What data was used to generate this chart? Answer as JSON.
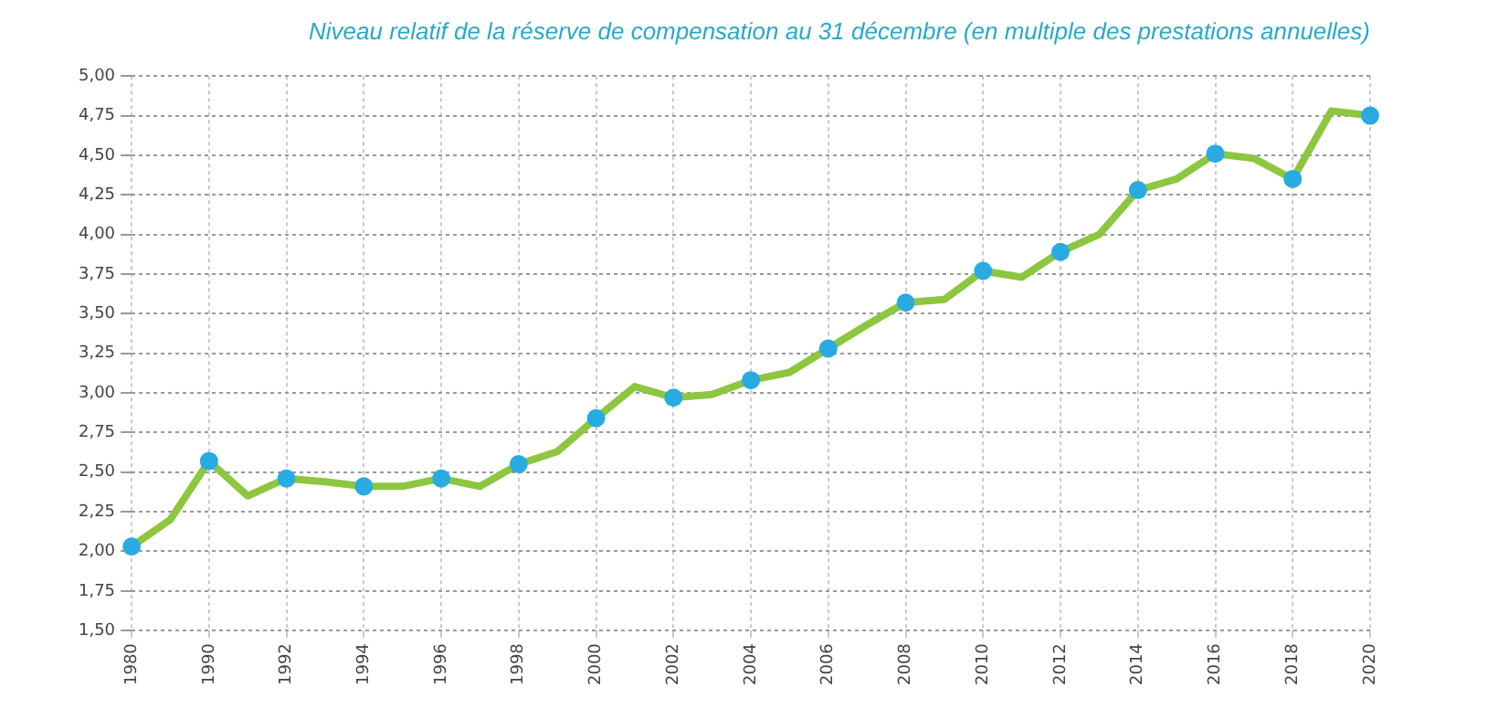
{
  "chart_data": {
    "type": "line",
    "title": "Niveau relatif de la réserve de compensation au 31 décembre (en multiple des prestations annuelles)",
    "categories": [
      "1980",
      null,
      "1990",
      null,
      "1992",
      null,
      "1994",
      null,
      "1996",
      null,
      "1998",
      null,
      "2000",
      null,
      "2002",
      null,
      "2004",
      null,
      "2006",
      null,
      "2008",
      null,
      "2010",
      null,
      "2012",
      null,
      "2014",
      null,
      "2016",
      null,
      "2018",
      null,
      "2020"
    ],
    "series": [
      {
        "color": "#8dc63f",
        "marker": "none",
        "values": [
          2.03,
          2.2,
          2.57,
          2.35,
          2.46,
          2.44,
          2.41,
          2.41,
          2.46,
          2.41,
          2.55,
          2.63,
          2.84,
          3.04,
          2.97,
          2.99,
          3.08,
          3.13,
          3.28,
          3.43,
          3.57,
          3.59,
          3.77,
          3.73,
          3.89,
          4.0,
          4.28,
          4.35,
          4.51,
          4.48,
          4.35,
          4.78,
          4.75
        ]
      },
      {
        "type": "scatter",
        "color": "#29abe2",
        "marker": "circle",
        "values": [
          2.03,
          null,
          2.57,
          null,
          2.46,
          null,
          2.41,
          null,
          2.46,
          null,
          2.55,
          null,
          2.84,
          null,
          2.97,
          null,
          3.08,
          null,
          3.28,
          null,
          3.57,
          null,
          3.77,
          null,
          3.89,
          null,
          4.28,
          null,
          4.51,
          null,
          4.35,
          null,
          4.75
        ]
      }
    ],
    "ylim": [
      1.5,
      5.0
    ],
    "yticks": [
      {
        "value": 1.5,
        "label": "1,50"
      },
      {
        "value": 1.75,
        "label": "1,75"
      },
      {
        "value": 2.0,
        "label": "2,00"
      },
      {
        "value": 2.25,
        "label": "2,25"
      },
      {
        "value": 2.5,
        "label": "2,50"
      },
      {
        "value": 2.75,
        "label": "2,75"
      },
      {
        "value": 3.0,
        "label": "3,00"
      },
      {
        "value": 3.25,
        "label": "3,25"
      },
      {
        "value": 3.5,
        "label": "3,50"
      },
      {
        "value": 3.75,
        "label": "3,75"
      },
      {
        "value": 4.0,
        "label": "4,00"
      },
      {
        "value": 4.25,
        "label": "4,25"
      },
      {
        "value": 4.5,
        "label": "4,50"
      },
      {
        "value": 4.75,
        "label": "4,75"
      },
      {
        "value": 5.0,
        "label": "5,00"
      }
    ],
    "grid": true
  }
}
